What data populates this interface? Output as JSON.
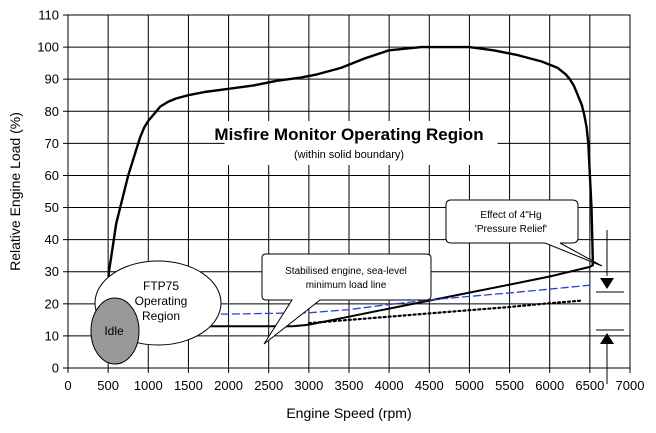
{
  "chart_data": {
    "type": "line",
    "title": "Misfire Monitor Operating Region",
    "subtitle": "(within solid boundary)",
    "xlabel": "Engine Speed (rpm)",
    "ylabel": "Relative Engine Load (%)",
    "xlim": [
      0,
      7000
    ],
    "ylim": [
      0,
      110
    ],
    "xticks": [
      "0",
      "500",
      "1000",
      "1500",
      "2000",
      "2500",
      "3000",
      "3500",
      "4000",
      "4500",
      "5000",
      "5500",
      "6000",
      "6500",
      "7000"
    ],
    "yticks": [
      "0",
      "10",
      "20",
      "30",
      "40",
      "50",
      "60",
      "70",
      "80",
      "90",
      "100",
      "110"
    ],
    "grid": true,
    "series": [
      {
        "style": "solid-boundary",
        "x": [
          500,
          510,
          540,
          570,
          600,
          650,
          700,
          750,
          800,
          850,
          900,
          950,
          1000,
          1050,
          1100,
          1150,
          1250,
          1350,
          1500,
          1700,
          2000,
          2300,
          2600,
          2900,
          3100,
          3400,
          3700,
          4000,
          4200,
          4400,
          4700,
          5000,
          5300,
          5600,
          5900,
          6100,
          6200,
          6250,
          6300,
          6350,
          6400,
          6430,
          6460,
          6480,
          6500,
          6520,
          6530,
          6535,
          6535
        ],
        "y": [
          25,
          30,
          35,
          40,
          45,
          50,
          55,
          60,
          64,
          68,
          72,
          75,
          77,
          78.5,
          80,
          81.5,
          83,
          84,
          85,
          86,
          87,
          88,
          89.5,
          90.5,
          91.5,
          93.5,
          96.5,
          99,
          99.5,
          100,
          100,
          100,
          99,
          97.5,
          95.5,
          93.5,
          91.5,
          90,
          88,
          85,
          82,
          79,
          75,
          70,
          60,
          50,
          40,
          35,
          32
        ]
      },
      {
        "style": "solid-min-load",
        "x": [
          500,
          600,
          800,
          1000,
          1200,
          1400,
          1600,
          1800,
          2000,
          2200,
          2400,
          2600,
          2800,
          3000,
          3500,
          4000,
          4500,
          5000,
          5500,
          6000,
          6500,
          6535
        ],
        "y": [
          14.5,
          13.8,
          13,
          13,
          13,
          13,
          13,
          13,
          13,
          13,
          13,
          13,
          13,
          13.5,
          16,
          18.5,
          21,
          23.5,
          26,
          28.5,
          31.5,
          32
        ]
      },
      {
        "style": "dashed-blue",
        "x": [
          1500,
          2000,
          2500,
          3000,
          3500,
          4000,
          4500,
          5000,
          5500,
          6000,
          6500
        ],
        "y": [
          16.7,
          16.8,
          17,
          17.2,
          18.2,
          19.8,
          21.2,
          22.3,
          23.4,
          24.6,
          25.8
        ]
      },
      {
        "style": "dotted-black",
        "x": [
          3000,
          3500,
          4000,
          4500,
          5000,
          5500,
          6000,
          6400
        ],
        "y": [
          14,
          15,
          16,
          17,
          18,
          19,
          20.2,
          21
        ]
      }
    ],
    "annotations": {
      "effect": [
        "Effect of 4\"Hg",
        "'Pressure Relief'"
      ],
      "stabilised": [
        "Stabilised engine, sea-level",
        "minimum load line"
      ],
      "ftp": [
        "FTP75",
        "Operating",
        "Region"
      ],
      "idle": "Idle"
    }
  }
}
